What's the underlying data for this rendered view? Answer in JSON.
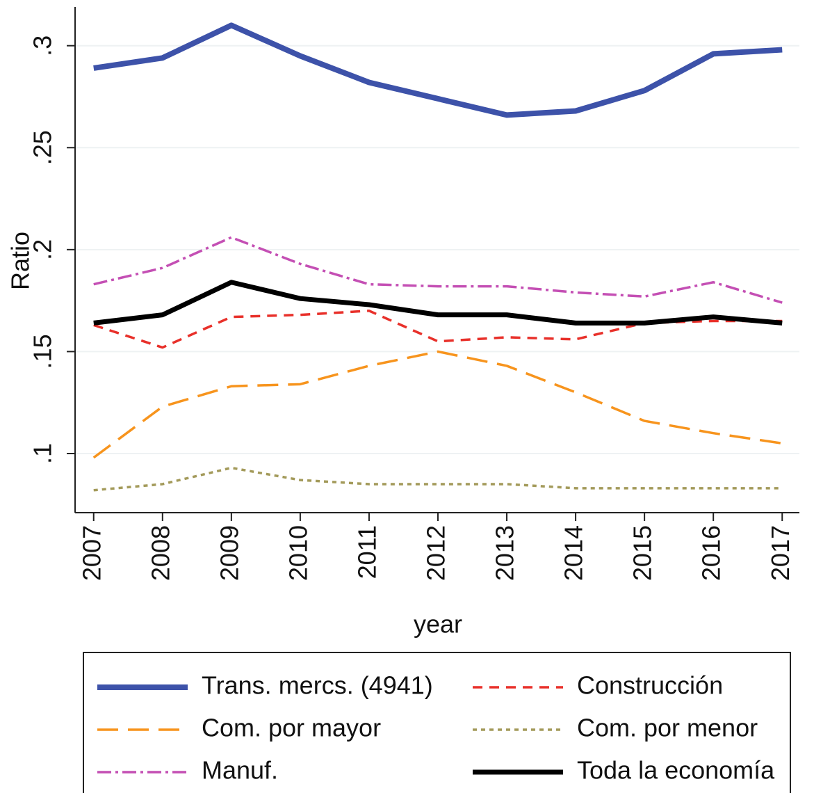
{
  "chart_data": {
    "type": "line",
    "x_label": "year",
    "y_label": "Ratio",
    "x": [
      2007,
      2008,
      2009,
      2010,
      2011,
      2012,
      2013,
      2014,
      2015,
      2016,
      2017
    ],
    "xlim": [
      2006.73,
      2017.25
    ],
    "xticks": [
      2007,
      2008,
      2009,
      2010,
      2011,
      2012,
      2013,
      2014,
      2015,
      2016,
      2017
    ],
    "ylim": [
      0.071,
      0.319
    ],
    "yticks": [
      {
        "value": 0.1,
        "label": ".1"
      },
      {
        "value": 0.15,
        "label": ".15"
      },
      {
        "value": 0.2,
        "label": ".2"
      },
      {
        "value": 0.25,
        "label": ".25"
      },
      {
        "value": 0.3,
        "label": ".3"
      }
    ],
    "grid": true,
    "series": [
      {
        "name": "Trans. mercs. (4941)",
        "color": "#3d52a9",
        "width": 8,
        "dash": "none",
        "values": [
          0.289,
          0.294,
          0.31,
          0.295,
          0.282,
          0.274,
          0.266,
          0.268,
          0.278,
          0.296,
          0.298
        ]
      },
      {
        "name": "Construcción",
        "color": "#e8302a",
        "width": 3.5,
        "dash": "14 10",
        "values": [
          0.163,
          0.152,
          0.167,
          0.168,
          0.17,
          0.155,
          0.157,
          0.156,
          0.164,
          0.165,
          0.165
        ]
      },
      {
        "name": "Com. por mayor",
        "color": "#f7941d",
        "width": 3.5,
        "dash": "30 14",
        "values": [
          0.098,
          0.123,
          0.133,
          0.134,
          0.143,
          0.15,
          0.143,
          0.13,
          0.116,
          0.11,
          0.105
        ]
      },
      {
        "name": "Com. por menor",
        "color": "#a39a5a",
        "width": 3.5,
        "dash": "6 6",
        "values": [
          0.082,
          0.085,
          0.093,
          0.087,
          0.085,
          0.085,
          0.085,
          0.083,
          0.083,
          0.083,
          0.083
        ]
      },
      {
        "name": "Manuf.",
        "color": "#c44fb4",
        "width": 3.5,
        "dash": "20 6 4 6",
        "values": [
          0.183,
          0.191,
          0.206,
          0.193,
          0.183,
          0.182,
          0.182,
          0.179,
          0.177,
          0.184,
          0.174
        ]
      },
      {
        "name": "Toda la economía",
        "color": "#000000",
        "width": 7,
        "dash": "none",
        "values": [
          0.164,
          0.168,
          0.184,
          0.176,
          0.173,
          0.168,
          0.168,
          0.164,
          0.164,
          0.167,
          0.164
        ]
      }
    ]
  }
}
